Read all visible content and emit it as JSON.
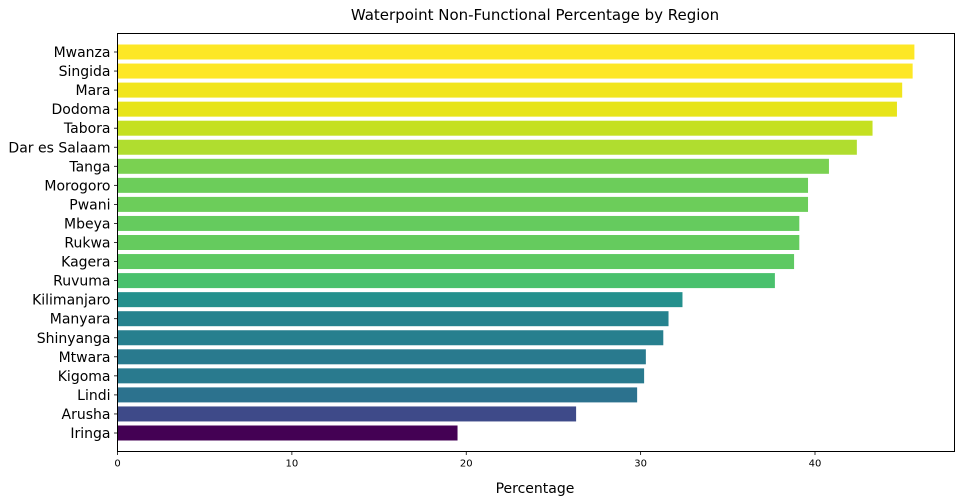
{
  "chart_data": {
    "type": "bar",
    "orientation": "horizontal",
    "title": "Waterpoint Non-Functional Percentage by Region",
    "xlabel": "Percentage",
    "ylabel": "",
    "xlim": [
      0,
      48
    ],
    "xticks": [
      0,
      10,
      20,
      30,
      40
    ],
    "grid": false,
    "colormap": "viridis",
    "categories": [
      "Mwanza",
      "Singida",
      "Mara",
      "Dodoma",
      "Tabora",
      "Dar es Salaam",
      "Tanga",
      "Morogoro",
      "Pwani",
      "Mbeya",
      "Rukwa",
      "Kagera",
      "Ruvuma",
      "Kilimanjaro",
      "Manyara",
      "Shinyanga",
      "Mtwara",
      "Kigoma",
      "Lindi",
      "Arusha",
      "Iringa"
    ],
    "values": [
      45.7,
      45.6,
      45.0,
      44.7,
      43.3,
      42.4,
      40.8,
      39.6,
      39.6,
      39.1,
      39.1,
      38.8,
      37.7,
      32.4,
      31.6,
      31.3,
      30.3,
      30.2,
      29.8,
      26.3,
      19.5
    ],
    "colors": [
      "#fde725",
      "#fde725",
      "#f1e51d",
      "#e7e419",
      "#c5e021",
      "#b0dd2f",
      "#7ad151",
      "#6ccd5a",
      "#6ccd5a",
      "#65cb5e",
      "#65cb5e",
      "#5ec962",
      "#4ac16d",
      "#24908d",
      "#26828e",
      "#277f8e",
      "#297a8e",
      "#297a8e",
      "#2c728e",
      "#3e4a89",
      "#440154"
    ]
  }
}
